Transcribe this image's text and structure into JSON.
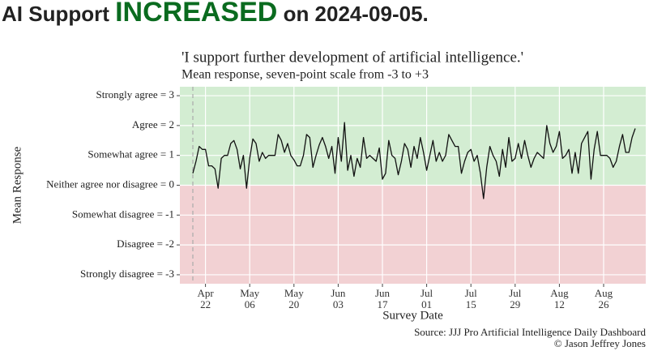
{
  "chart_data": {
    "type": "line",
    "title": [
      "AI Support ",
      "INCREASED",
      " on 2024-09-05."
    ],
    "title_colors": [
      "#222222",
      "#0a6b1f",
      "#222222"
    ],
    "subtitle": [
      "'I support further development of artificial intelligence.'",
      "Mean response, seven-point scale from -3 to +3"
    ],
    "y_label": "Mean Response",
    "x_label": "Survey Date",
    "caption": [
      "Source: JJJ Pro Artificial Intelligence Daily Dashboard",
      "© Jason Jeffrey Jones"
    ],
    "positive_color": "#d3edd2",
    "negative_color": "#f2d1d3",
    "grid": true,
    "vline": "Apr 18",
    "ylim": [
      -3.3,
      3.3
    ],
    "yticks": [
      {
        "value": 3,
        "label": "Strongly agree = 3"
      },
      {
        "value": 2,
        "label": "Agree = 2"
      },
      {
        "value": 1,
        "label": "Somewhat agree = 1"
      },
      {
        "value": 0,
        "label": "Neither agree nor disagree = 0"
      },
      {
        "value": -1,
        "label": "Somewhat disagree = -1"
      },
      {
        "value": -2,
        "label": "Disagree = -2"
      },
      {
        "value": -3,
        "label": "Strongly disagree = -3"
      }
    ],
    "xticks": [
      "Apr 22",
      "May 06",
      "May 20",
      "Jun 03",
      "Jun 17",
      "Jul 01",
      "Jul 15",
      "Jul 29",
      "Aug 12",
      "Aug 26"
    ],
    "categories": [
      "Apr 18",
      "Apr 19",
      "Apr 20",
      "Apr 21",
      "Apr 22",
      "Apr 23",
      "Apr 24",
      "Apr 25",
      "Apr 26",
      "Apr 27",
      "Apr 28",
      "Apr 29",
      "Apr 30",
      "May 01",
      "May 02",
      "May 03",
      "May 04",
      "May 05",
      "May 06",
      "May 07",
      "May 08",
      "May 09",
      "May 10",
      "May 11",
      "May 12",
      "May 13",
      "May 14",
      "May 15",
      "May 16",
      "May 17",
      "May 18",
      "May 19",
      "May 20",
      "May 21",
      "May 22",
      "May 23",
      "May 24",
      "May 25",
      "May 26",
      "May 27",
      "May 28",
      "May 29",
      "May 30",
      "May 31",
      "Jun 01",
      "Jun 02",
      "Jun 03",
      "Jun 04",
      "Jun 05",
      "Jun 06",
      "Jun 07",
      "Jun 08",
      "Jun 09",
      "Jun 10",
      "Jun 11",
      "Jun 12",
      "Jun 13",
      "Jun 14",
      "Jun 15",
      "Jun 16",
      "Jun 17",
      "Jun 18",
      "Jun 19",
      "Jun 20",
      "Jun 21",
      "Jun 22",
      "Jun 23",
      "Jun 24",
      "Jun 25",
      "Jun 26",
      "Jun 27",
      "Jun 28",
      "Jun 29",
      "Jun 30",
      "Jul 01",
      "Jul 02",
      "Jul 03",
      "Jul 04",
      "Jul 05",
      "Jul 06",
      "Jul 07",
      "Jul 08",
      "Jul 09",
      "Jul 10",
      "Jul 11",
      "Jul 12",
      "Jul 13",
      "Jul 14",
      "Jul 15",
      "Jul 16",
      "Jul 17",
      "Jul 18",
      "Jul 19",
      "Jul 20",
      "Jul 21",
      "Jul 22",
      "Jul 23",
      "Jul 24",
      "Jul 25",
      "Jul 26",
      "Jul 27",
      "Jul 28",
      "Jul 29",
      "Jul 30",
      "Jul 31",
      "Aug 01",
      "Aug 02",
      "Aug 03",
      "Aug 04",
      "Aug 05",
      "Aug 06",
      "Aug 07",
      "Aug 08",
      "Aug 09",
      "Aug 10",
      "Aug 11",
      "Aug 12",
      "Aug 13",
      "Aug 14",
      "Aug 15",
      "Aug 16",
      "Aug 17",
      "Aug 18",
      "Aug 19",
      "Aug 20",
      "Aug 21",
      "Aug 22",
      "Aug 23",
      "Aug 24",
      "Aug 25",
      "Aug 26",
      "Aug 27",
      "Aug 28",
      "Aug 29",
      "Aug 30",
      "Aug 31",
      "Sep 01",
      "Sep 02",
      "Sep 03",
      "Sep 04",
      "Sep 05"
    ],
    "series": [
      {
        "name": "Mean Response",
        "color": "#111111",
        "values": [
          0.4,
          0.8,
          1.3,
          1.2,
          1.2,
          0.65,
          0.65,
          0.55,
          -0.1,
          0.9,
          1.0,
          1.0,
          1.4,
          1.5,
          1.2,
          0.55,
          1.0,
          -0.1,
          0.9,
          1.55,
          1.4,
          0.8,
          1.1,
          0.9,
          1.0,
          1.0,
          1.0,
          1.7,
          1.5,
          1.1,
          1.4,
          1.0,
          0.85,
          0.65,
          0.65,
          1.0,
          1.7,
          1.6,
          0.6,
          1.0,
          1.35,
          1.6,
          1.3,
          0.9,
          1.3,
          0.4,
          1.6,
          0.8,
          2.1,
          0.5,
          1.0,
          0.3,
          0.9,
          0.6,
          1.6,
          0.9,
          1.0,
          0.9,
          0.8,
          1.25,
          0.2,
          0.4,
          1.5,
          1.0,
          0.9,
          0.35,
          0.8,
          1.4,
          1.2,
          0.6,
          1.3,
          0.9,
          1.6,
          1.1,
          0.5,
          1.0,
          1.5,
          0.8,
          1.1,
          0.8,
          1.0,
          1.7,
          1.5,
          1.3,
          1.3,
          0.4,
          0.8,
          1.1,
          1.2,
          0.8,
          1.0,
          0.4,
          -0.45,
          0.6,
          1.3,
          1.0,
          0.8,
          0.3,
          1.2,
          0.6,
          1.6,
          0.8,
          0.9,
          1.4,
          0.9,
          1.5,
          1.0,
          0.6,
          0.9,
          1.1,
          1.0,
          0.9,
          2.0,
          1.4,
          1.1,
          1.3,
          1.8,
          0.9,
          1.0,
          1.2,
          0.4,
          1.1,
          0.4,
          1.4,
          1.6,
          1.8,
          0.2,
          1.2,
          1.8,
          1.0,
          1.0,
          1.0,
          0.9,
          0.6,
          0.8,
          1.3,
          1.7,
          1.1,
          1.1,
          1.6,
          1.9
        ]
      }
    ]
  }
}
